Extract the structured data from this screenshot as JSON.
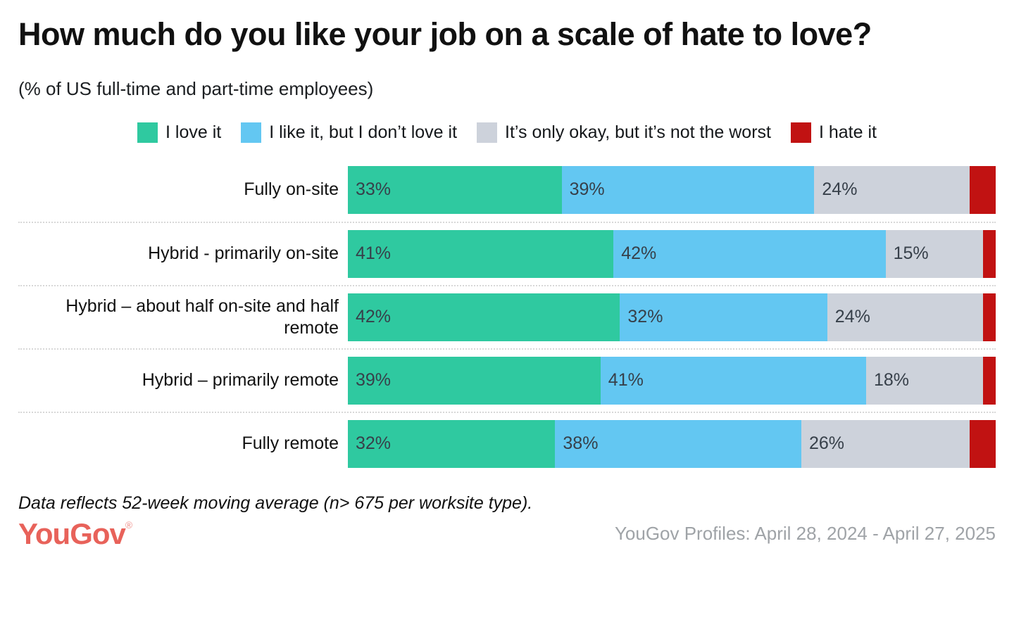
{
  "header": {
    "title": "How much do you like your job on a scale of hate to love?",
    "subtitle": "(% of US full-time and part-time employees)"
  },
  "legend": [
    {
      "label": "I love it",
      "color": "#2fc9a0"
    },
    {
      "label": "I like it, but I don’t love it",
      "color": "#63c7f2"
    },
    {
      "label": "It’s only okay, but it’s not the worst",
      "color": "#cdd2db"
    },
    {
      "label": "I hate it",
      "color": "#c11212"
    }
  ],
  "chart_data": {
    "type": "bar",
    "orientation": "horizontal",
    "stacked": true,
    "value_unit": "%",
    "xlim": [
      0,
      100
    ],
    "grid": false,
    "legend_position": "top-center",
    "categories": [
      "Fully on-site",
      "Hybrid - primarily on-site",
      "Hybrid – about half on-site and half remote",
      "Hybrid – primarily remote",
      "Fully remote"
    ],
    "series": [
      {
        "name": "I love it",
        "color": "#2fc9a0",
        "show_labels": true,
        "values": [
          33,
          41,
          42,
          39,
          32
        ]
      },
      {
        "name": "I like it, but I don’t love it",
        "color": "#63c7f2",
        "show_labels": true,
        "values": [
          39,
          42,
          32,
          41,
          38
        ]
      },
      {
        "name": "It’s only okay, but it’s not the worst",
        "color": "#cdd2db",
        "show_labels": true,
        "values": [
          24,
          15,
          24,
          18,
          26
        ]
      },
      {
        "name": "I hate it",
        "color": "#c11212",
        "show_labels": false,
        "values": [
          4,
          2,
          2,
          2,
          4
        ]
      }
    ]
  },
  "footer": {
    "footnote": "Data reflects 52-week moving average (n> 675 per worksite type).",
    "logo_text": "YouGov",
    "logo_registered": "®",
    "logo_color": "#e8625a",
    "source": "YouGov Profiles: April 28, 2024 - April 27, 2025"
  }
}
